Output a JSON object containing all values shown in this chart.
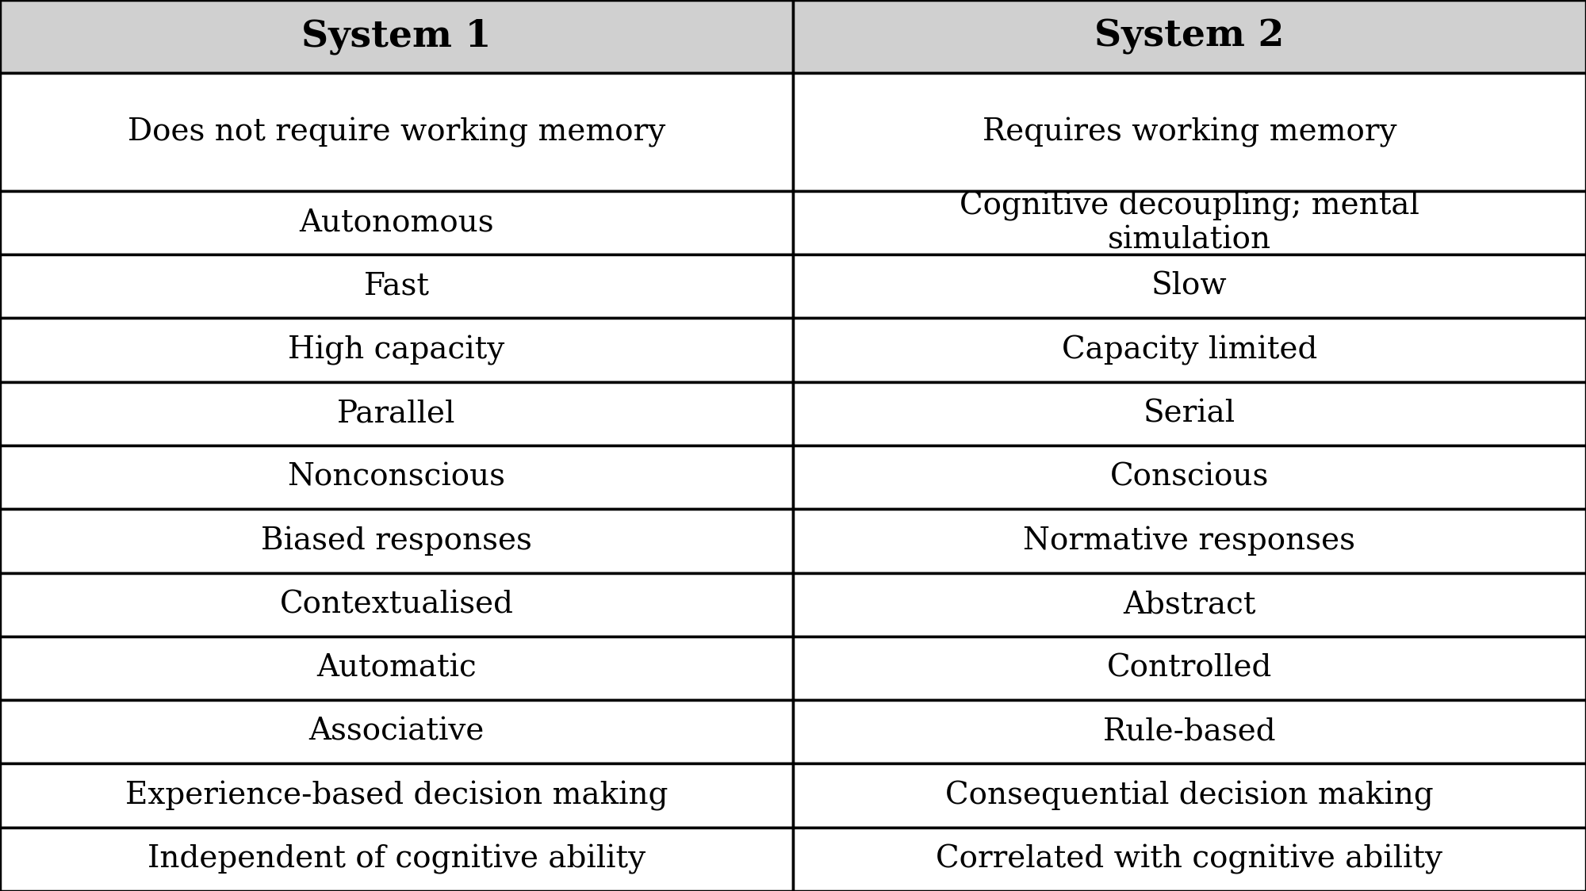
{
  "title_row": [
    "System 1",
    "System 2"
  ],
  "rows": [
    [
      "Does not require working memory",
      "Requires working memory"
    ],
    [
      "Autonomous",
      "Cognitive decoupling; mental\nsimulation"
    ],
    [
      "Fast",
      "Slow"
    ],
    [
      "High capacity",
      "Capacity limited"
    ],
    [
      "Parallel",
      "Serial"
    ],
    [
      "Nonconscious",
      "Conscious"
    ],
    [
      "Biased responses",
      "Normative responses"
    ],
    [
      "Contextualised",
      "Abstract"
    ],
    [
      "Automatic",
      "Controlled"
    ],
    [
      "Associative",
      "Rule-based"
    ],
    [
      "Experience-based decision making",
      "Consequential decision making"
    ],
    [
      "Independent of cognitive ability",
      "Correlated with cognitive ability"
    ]
  ],
  "header_bg": "#d0d0d0",
  "row_bg": "#ffffff",
  "border_color": "#000000",
  "text_color": "#000000",
  "header_fontsize": 34,
  "row_fontsize": 28,
  "fig_width": 20.0,
  "fig_height": 11.24,
  "dpi": 100,
  "row_heights_relative": [
    1.15,
    1.85,
    1.0,
    1.0,
    1.0,
    1.0,
    1.0,
    1.0,
    1.0,
    1.0,
    1.0,
    1.0,
    1.0
  ]
}
